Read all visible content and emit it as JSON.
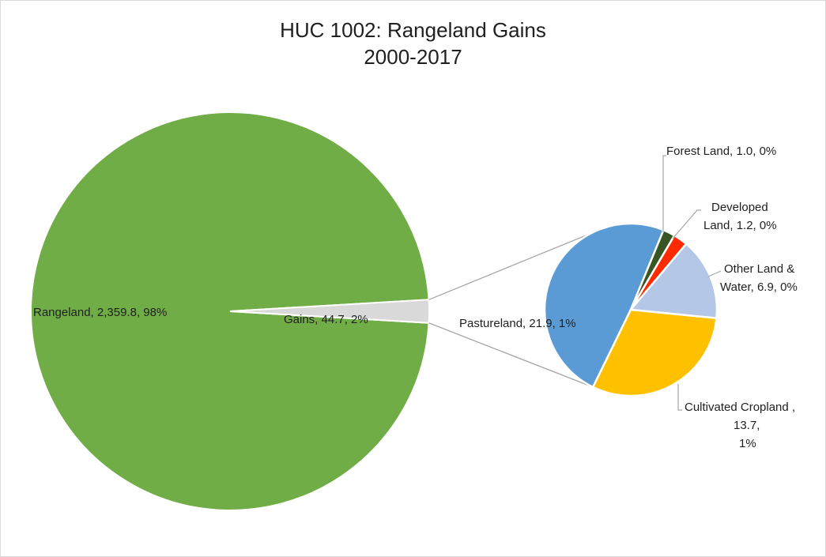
{
  "chart_data": {
    "type": "pie",
    "subtype": "pie-of-pie",
    "title_line1": "HUC 1002: Rangeland Gains",
    "title_line2": "2000-2017",
    "legend": "none",
    "primary": {
      "slices": [
        {
          "label": "Rangeland",
          "value": 2359.8,
          "value_text": "2,359.8",
          "percent": "98%",
          "color": "#70ad47"
        },
        {
          "label": "Gains",
          "value": 44.7,
          "value_text": "44.7",
          "percent": "2%",
          "color": "#d9d9d9"
        }
      ]
    },
    "secondary": {
      "of": "Gains",
      "slices": [
        {
          "label": "Pastureland",
          "value": 21.9,
          "value_text": "21.9",
          "percent": "1%",
          "color": "#5b9bd5"
        },
        {
          "label": "Forest Land",
          "value": 1.0,
          "value_text": "1.0",
          "percent": "0%",
          "color": "#375623"
        },
        {
          "label": "Developed Land",
          "value": 1.2,
          "value_text": "1.2",
          "percent": "0%",
          "color": "#ff2a00"
        },
        {
          "label": "Other Land & Water",
          "value": 6.9,
          "value_text": "6.9",
          "percent": "0%",
          "color": "#b4c7e7"
        },
        {
          "label": "Cultivated Cropland",
          "value": 13.7,
          "value_text": "13.7",
          "percent": "1%",
          "color": "#ffc000"
        }
      ]
    },
    "data_labels": {
      "rangeland": "Rangeland, 2,359.8, 98%",
      "gains": "Gains, 44.7, 2%",
      "pastureland": "Pastureland, 21.9, 1%",
      "forest": "Forest Land, 1.0, 0%",
      "developed_line1": "Developed",
      "developed_line2": "Land, 1.2, 0%",
      "other_line1": "Other Land &",
      "other_line2": "Water, 6.9, 0%",
      "cropland_line1": "Cultivated Cropland ,",
      "cropland_line2": "13.7,",
      "cropland_line3": "1%"
    }
  }
}
